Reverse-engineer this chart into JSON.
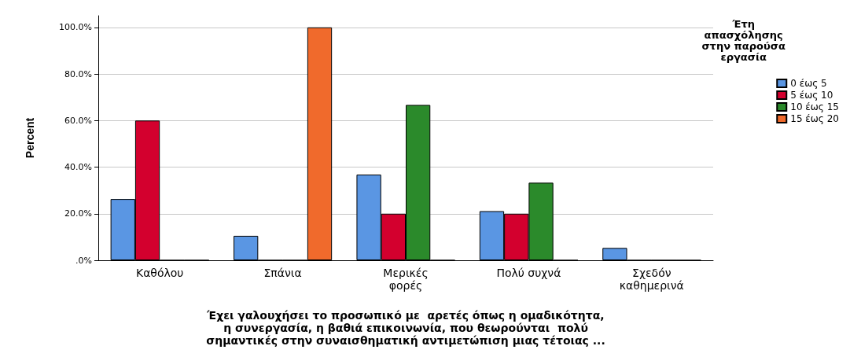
{
  "chart_data": {
    "type": "bar",
    "xlabel": "Έχει γαλουχήσει το προσωπικό με  αρετές όπως η ομαδικότητα,\nη συνεργασία, η βαθιά επικοινωνία, που θεωρούνται  πολύ\nσημαντικές στην συναισθηματική αντιμετώπιση μιας τέτοιας ...",
    "ylabel": "Percent",
    "legend_title": "Έτη\nαπασχόλησης\nστην παρούσα\nεργασία",
    "categories": [
      "Καθόλου",
      "Σπάνια",
      "Μερικές\nφορές",
      "Πολύ συχνά",
      "Σχεδόν\nκαθημερινά"
    ],
    "series": [
      {
        "name": "0 έως 5",
        "color": "#5a96e3",
        "values": [
          26.3,
          10.5,
          36.8,
          21.1,
          5.3
        ]
      },
      {
        "name": "5 έως 10",
        "color": "#d3002e",
        "values": [
          60,
          0,
          20,
          20,
          0
        ]
      },
      {
        "name": "10 έως 15",
        "color": "#2b8a2b",
        "values": [
          0,
          0,
          66.7,
          33.3,
          0
        ]
      },
      {
        "name": "15 έως 20",
        "color": "#f06a2c",
        "values": [
          0,
          100,
          0,
          0,
          0
        ]
      }
    ],
    "ylim": [
      0,
      105
    ],
    "yticks": [
      {
        "value": 0,
        "label": ".0%"
      },
      {
        "value": 20,
        "label": "20.0%"
      },
      {
        "value": 40,
        "label": "40.0%"
      },
      {
        "value": 60,
        "label": "60.0%"
      },
      {
        "value": 80,
        "label": "80.0%"
      },
      {
        "value": 100,
        "label": "100.0%"
      }
    ],
    "grid": "y",
    "legend": "right"
  }
}
